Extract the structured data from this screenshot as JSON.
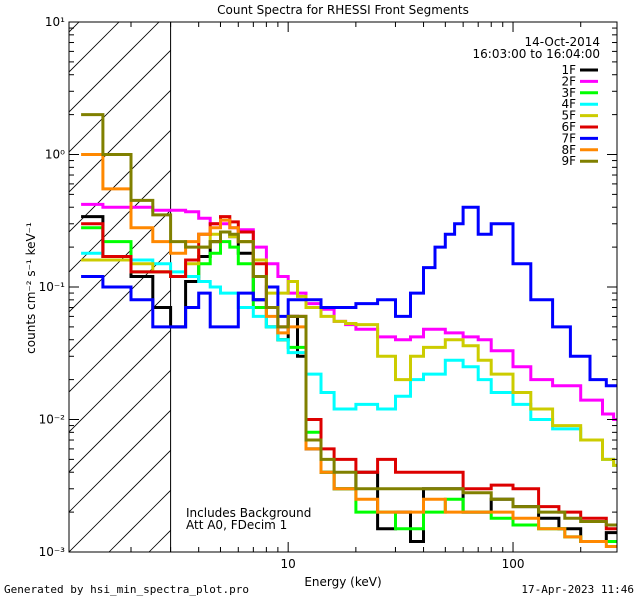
{
  "chart_data": {
    "type": "line",
    "title": "Count Spectra for RHESSI Front Segments",
    "xlabel": "Energy (keV)",
    "ylabel": "counts cm⁻² s⁻¹ keV⁻¹",
    "xscale": "log",
    "yscale": "log",
    "xlim": [
      1.06,
      290
    ],
    "ylim": [
      0.001,
      10
    ],
    "x_ticks": [
      10,
      100
    ],
    "y_ticks": [
      0.001,
      0.01,
      0.1,
      1,
      10
    ],
    "y_tick_labels": [
      "10⁻³",
      "10⁻²",
      "10⁻¹",
      "10⁰",
      "10¹"
    ],
    "date": "14-Oct-2014",
    "time_range": "16:03:00 to 16:04:00",
    "shaded_region": {
      "x_min": 1.06,
      "x_max": 3.0,
      "pattern": "hatched"
    },
    "annotation": [
      "Includes Background",
      "Att A0, FDecim 1"
    ],
    "series": [
      {
        "name": "1F",
        "color": "#000000",
        "values": [
          [
            1.2,
            0.34
          ],
          [
            1.5,
            0.17
          ],
          [
            2.0,
            0.12
          ],
          [
            2.5,
            0.07
          ],
          [
            3.0,
            0.05
          ],
          [
            3.5,
            0.11
          ],
          [
            4.0,
            0.17
          ],
          [
            4.5,
            0.22
          ],
          [
            5.0,
            0.26
          ],
          [
            5.5,
            0.24
          ],
          [
            6.0,
            0.18
          ],
          [
            7.0,
            0.08
          ],
          [
            8.0,
            0.05
          ],
          [
            9.0,
            0.04
          ],
          [
            10,
            0.06
          ],
          [
            11,
            0.03
          ],
          [
            12,
            0.006
          ],
          [
            14,
            0.004
          ],
          [
            16,
            0.003
          ],
          [
            20,
            0.004
          ],
          [
            25,
            0.0015
          ],
          [
            30,
            0.002
          ],
          [
            35,
            0.0012
          ],
          [
            40,
            0.003
          ],
          [
            50,
            0.003
          ],
          [
            60,
            0.002
          ],
          [
            80,
            0.0025
          ],
          [
            100,
            0.0022
          ],
          [
            130,
            0.0018
          ],
          [
            160,
            0.0015
          ],
          [
            200,
            0.0012
          ],
          [
            260,
            0.0014
          ]
        ]
      },
      {
        "name": "2F",
        "color": "#ff00ff",
        "values": [
          [
            1.2,
            0.42
          ],
          [
            1.5,
            0.4
          ],
          [
            2.0,
            0.4
          ],
          [
            2.5,
            0.38
          ],
          [
            3.0,
            0.38
          ],
          [
            3.5,
            0.37
          ],
          [
            4.0,
            0.33
          ],
          [
            4.5,
            0.3
          ],
          [
            5.0,
            0.3
          ],
          [
            5.5,
            0.28
          ],
          [
            6.0,
            0.27
          ],
          [
            7.0,
            0.2
          ],
          [
            8.0,
            0.15
          ],
          [
            9.0,
            0.12
          ],
          [
            10,
            0.09
          ],
          [
            12,
            0.075
          ],
          [
            14,
            0.068
          ],
          [
            16,
            0.055
          ],
          [
            18,
            0.052
          ],
          [
            20,
            0.048
          ],
          [
            25,
            0.042
          ],
          [
            30,
            0.04
          ],
          [
            35,
            0.042
          ],
          [
            40,
            0.048
          ],
          [
            50,
            0.045
          ],
          [
            60,
            0.042
          ],
          [
            70,
            0.04
          ],
          [
            80,
            0.033
          ],
          [
            100,
            0.025
          ],
          [
            120,
            0.02
          ],
          [
            150,
            0.018
          ],
          [
            200,
            0.014
          ],
          [
            250,
            0.011
          ],
          [
            280,
            0.01
          ]
        ]
      },
      {
        "name": "3F",
        "color": "#00ff00",
        "values": [
          [
            1.2,
            0.28
          ],
          [
            1.5,
            0.22
          ],
          [
            2.0,
            0.13
          ],
          [
            2.5,
            0.13
          ],
          [
            3.0,
            0.12
          ],
          [
            3.5,
            0.12
          ],
          [
            4.0,
            0.15
          ],
          [
            4.5,
            0.18
          ],
          [
            5.0,
            0.22
          ],
          [
            5.5,
            0.2
          ],
          [
            6.0,
            0.15
          ],
          [
            7.0,
            0.07
          ],
          [
            8.0,
            0.05
          ],
          [
            9.0,
            0.04
          ],
          [
            10,
            0.035
          ],
          [
            12,
            0.008
          ],
          [
            14,
            0.004
          ],
          [
            16,
            0.003
          ],
          [
            20,
            0.002
          ],
          [
            25,
            0.002
          ],
          [
            30,
            0.0015
          ],
          [
            40,
            0.002
          ],
          [
            50,
            0.0025
          ],
          [
            60,
            0.002
          ],
          [
            80,
            0.0018
          ],
          [
            100,
            0.0016
          ],
          [
            130,
            0.0015
          ],
          [
            170,
            0.0013
          ],
          [
            200,
            0.0012
          ],
          [
            270,
            0.0012
          ]
        ]
      },
      {
        "name": "4F",
        "color": "#00ffff",
        "values": [
          [
            1.2,
            0.18
          ],
          [
            1.5,
            0.17
          ],
          [
            2.0,
            0.16
          ],
          [
            2.5,
            0.15
          ],
          [
            3.0,
            0.13
          ],
          [
            3.5,
            0.12
          ],
          [
            4.0,
            0.11
          ],
          [
            4.5,
            0.1
          ],
          [
            5.0,
            0.09
          ],
          [
            6.0,
            0.07
          ],
          [
            7.0,
            0.06
          ],
          [
            8.0,
            0.05
          ],
          [
            9.0,
            0.04
          ],
          [
            10,
            0.032
          ],
          [
            12,
            0.022
          ],
          [
            14,
            0.016
          ],
          [
            16,
            0.012
          ],
          [
            20,
            0.013
          ],
          [
            25,
            0.012
          ],
          [
            30,
            0.015
          ],
          [
            35,
            0.02
          ],
          [
            40,
            0.022
          ],
          [
            50,
            0.028
          ],
          [
            60,
            0.025
          ],
          [
            70,
            0.02
          ],
          [
            80,
            0.016
          ],
          [
            100,
            0.013
          ],
          [
            120,
            0.01
          ],
          [
            150,
            0.0085
          ],
          [
            200,
            0.007
          ],
          [
            250,
            0.005
          ],
          [
            280,
            0.0045
          ]
        ]
      },
      {
        "name": "5F",
        "color": "#cccc00",
        "values": [
          [
            1.2,
            0.16
          ],
          [
            1.5,
            0.16
          ],
          [
            2.0,
            0.15
          ],
          [
            2.5,
            0.13
          ],
          [
            3.0,
            0.12
          ],
          [
            3.5,
            0.15
          ],
          [
            4.0,
            0.2
          ],
          [
            4.5,
            0.25
          ],
          [
            5.0,
            0.26
          ],
          [
            5.5,
            0.24
          ],
          [
            6.0,
            0.22
          ],
          [
            7.0,
            0.16
          ],
          [
            8.0,
            0.09
          ],
          [
            9.0,
            0.09
          ],
          [
            10,
            0.11
          ],
          [
            11,
            0.085
          ],
          [
            12,
            0.07
          ],
          [
            14,
            0.06
          ],
          [
            16,
            0.055
          ],
          [
            18,
            0.053
          ],
          [
            20,
            0.052
          ],
          [
            25,
            0.03
          ],
          [
            30,
            0.02
          ],
          [
            35,
            0.03
          ],
          [
            40,
            0.035
          ],
          [
            50,
            0.04
          ],
          [
            60,
            0.036
          ],
          [
            70,
            0.028
          ],
          [
            80,
            0.022
          ],
          [
            100,
            0.016
          ],
          [
            120,
            0.012
          ],
          [
            150,
            0.009
          ],
          [
            200,
            0.007
          ],
          [
            250,
            0.005
          ],
          [
            280,
            0.0045
          ]
        ]
      },
      {
        "name": "6F",
        "color": "#dd0000",
        "values": [
          [
            1.2,
            0.3
          ],
          [
            1.5,
            0.17
          ],
          [
            2.0,
            0.13
          ],
          [
            2.5,
            0.13
          ],
          [
            3.0,
            0.12
          ],
          [
            3.5,
            0.16
          ],
          [
            4.0,
            0.25
          ],
          [
            4.5,
            0.3
          ],
          [
            5.0,
            0.34
          ],
          [
            5.5,
            0.31
          ],
          [
            6.0,
            0.26
          ],
          [
            7.0,
            0.15
          ],
          [
            8.0,
            0.07
          ],
          [
            9.0,
            0.05
          ],
          [
            10,
            0.06
          ],
          [
            12,
            0.01
          ],
          [
            14,
            0.006
          ],
          [
            16,
            0.005
          ],
          [
            20,
            0.004
          ],
          [
            25,
            0.005
          ],
          [
            30,
            0.004
          ],
          [
            40,
            0.004
          ],
          [
            50,
            0.004
          ],
          [
            60,
            0.003
          ],
          [
            80,
            0.0032
          ],
          [
            100,
            0.003
          ],
          [
            130,
            0.0022
          ],
          [
            160,
            0.002
          ],
          [
            200,
            0.0018
          ],
          [
            260,
            0.0015
          ]
        ]
      },
      {
        "name": "7F",
        "color": "#0000ff",
        "values": [
          [
            1.2,
            0.12
          ],
          [
            1.5,
            0.1
          ],
          [
            2.0,
            0.08
          ],
          [
            2.5,
            0.05
          ],
          [
            3.0,
            0.05
          ],
          [
            3.5,
            0.07
          ],
          [
            4.0,
            0.09
          ],
          [
            4.5,
            0.05
          ],
          [
            5.0,
            0.05
          ],
          [
            6.0,
            0.09
          ],
          [
            7.0,
            0.08
          ],
          [
            8.0,
            0.1
          ],
          [
            9.0,
            0.06
          ],
          [
            10,
            0.08
          ],
          [
            11,
            0.08
          ],
          [
            14,
            0.07
          ],
          [
            17,
            0.07
          ],
          [
            20,
            0.075
          ],
          [
            25,
            0.08
          ],
          [
            30,
            0.06
          ],
          [
            35,
            0.09
          ],
          [
            40,
            0.14
          ],
          [
            45,
            0.2
          ],
          [
            50,
            0.25
          ],
          [
            55,
            0.3
          ],
          [
            60,
            0.4
          ],
          [
            70,
            0.25
          ],
          [
            80,
            0.3
          ],
          [
            100,
            0.15
          ],
          [
            120,
            0.08
          ],
          [
            150,
            0.05
          ],
          [
            180,
            0.03
          ],
          [
            220,
            0.02
          ],
          [
            260,
            0.018
          ]
        ]
      },
      {
        "name": "8F",
        "color": "#ff8800",
        "values": [
          [
            1.2,
            1.0
          ],
          [
            1.5,
            0.55
          ],
          [
            2.0,
            0.28
          ],
          [
            2.5,
            0.22
          ],
          [
            3.0,
            0.18
          ],
          [
            3.5,
            0.22
          ],
          [
            4.0,
            0.25
          ],
          [
            4.5,
            0.28
          ],
          [
            5.0,
            0.32
          ],
          [
            5.5,
            0.28
          ],
          [
            6.0,
            0.22
          ],
          [
            7.0,
            0.12
          ],
          [
            8.0,
            0.06
          ],
          [
            9.0,
            0.045
          ],
          [
            10,
            0.05
          ],
          [
            12,
            0.006
          ],
          [
            14,
            0.004
          ],
          [
            16,
            0.003
          ],
          [
            20,
            0.0025
          ],
          [
            25,
            0.002
          ],
          [
            30,
            0.002
          ],
          [
            40,
            0.0025
          ],
          [
            50,
            0.002
          ],
          [
            60,
            0.002
          ],
          [
            80,
            0.002
          ],
          [
            100,
            0.0018
          ],
          [
            130,
            0.0015
          ],
          [
            170,
            0.0013
          ],
          [
            200,
            0.0012
          ],
          [
            260,
            0.0011
          ]
        ]
      },
      {
        "name": "9F",
        "color": "#808000",
        "values": [
          [
            1.2,
            2.0
          ],
          [
            1.5,
            1.0
          ],
          [
            2.0,
            0.45
          ],
          [
            2.5,
            0.35
          ],
          [
            3.0,
            0.22
          ],
          [
            3.5,
            0.2
          ],
          [
            4.0,
            0.2
          ],
          [
            4.5,
            0.22
          ],
          [
            5.0,
            0.26
          ],
          [
            5.5,
            0.25
          ],
          [
            6.0,
            0.22
          ],
          [
            7.0,
            0.12
          ],
          [
            8.0,
            0.07
          ],
          [
            9.0,
            0.05
          ],
          [
            10,
            0.06
          ],
          [
            12,
            0.007
          ],
          [
            14,
            0.005
          ],
          [
            16,
            0.004
          ],
          [
            20,
            0.003
          ],
          [
            25,
            0.003
          ],
          [
            30,
            0.003
          ],
          [
            40,
            0.003
          ],
          [
            50,
            0.003
          ],
          [
            60,
            0.0028
          ],
          [
            80,
            0.0025
          ],
          [
            100,
            0.0022
          ],
          [
            130,
            0.002
          ],
          [
            170,
            0.0018
          ],
          [
            200,
            0.0017
          ],
          [
            260,
            0.0016
          ]
        ]
      }
    ]
  },
  "footer": {
    "generated_by": "Generated by hsi_min_spectra_plot.pro",
    "timestamp": "17-Apr-2023 11:46"
  }
}
